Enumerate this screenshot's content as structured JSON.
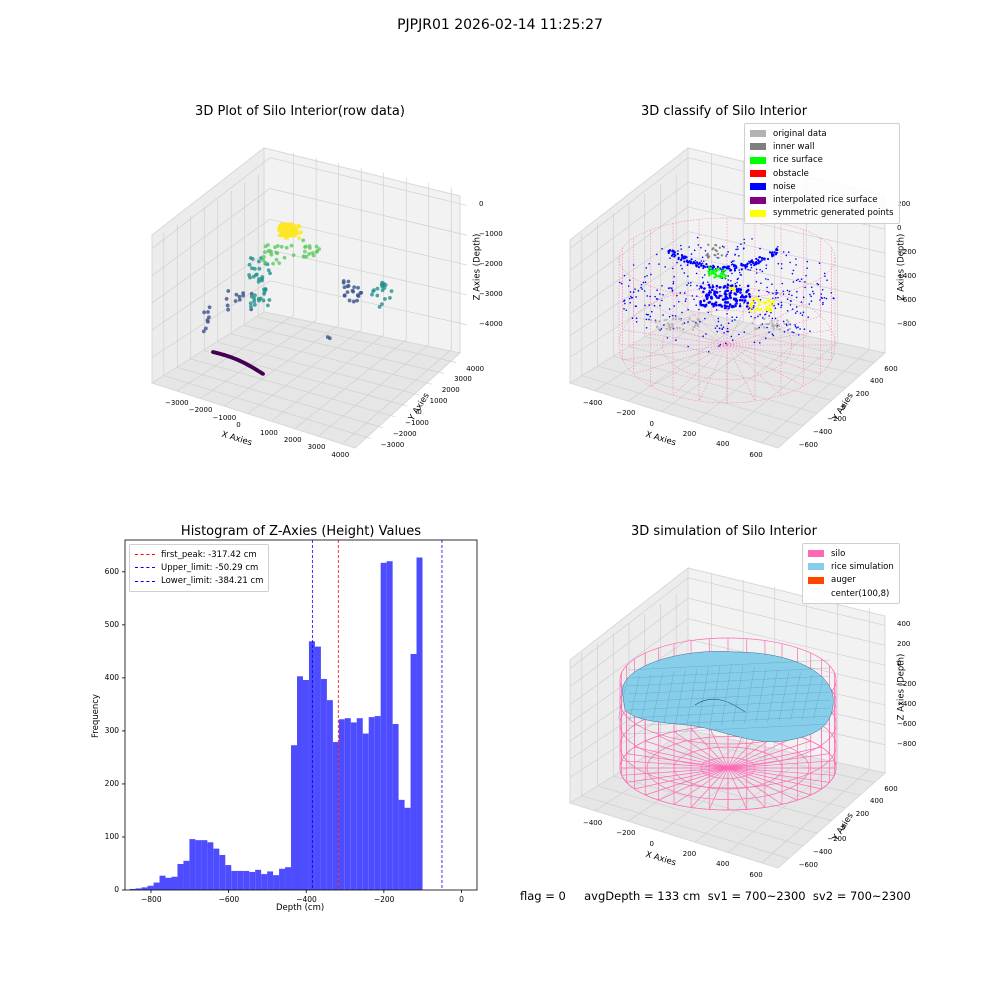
{
  "suptitle": "PJPJR01 2026-02-14 11:25:27",
  "status_text": "flag = 0     avgDepth = 133 cm  sv1 = 700~2300  sv2 = 700~2300",
  "chart_data": [
    {
      "type": "scatter",
      "title": "3D Plot of Silo Interior(row data)",
      "xlabel": "X Axies",
      "ylabel": "Y Axies",
      "zlabel": "Z Axies (Depth)",
      "x_ticks": [
        "−3000",
        "−2000",
        "−1000",
        "0",
        "1000",
        "2000",
        "3000",
        "4000"
      ],
      "y_ticks": [
        "−3000",
        "−2000",
        "−1000",
        "0",
        "1000",
        "2000",
        "3000",
        "4000"
      ],
      "z_ticks": [
        "0",
        "−1000",
        "−2000",
        "−3000",
        "−4000"
      ],
      "colormap": [
        "#440154",
        "#3b528b",
        "#21918c",
        "#5ec962",
        "#fde725"
      ],
      "grid": true
    },
    {
      "type": "scatter",
      "title": "3D classify of Silo Interior",
      "xlabel": "X Axies",
      "ylabel": "Y Axies",
      "zlabel": "Z Axies (Depth)",
      "x_ticks": [
        "−400",
        "−200",
        "0",
        "200",
        "400",
        "600"
      ],
      "y_ticks": [
        "−600",
        "−400",
        "−200",
        "0",
        "200",
        "400",
        "600"
      ],
      "z_ticks": [
        "200",
        "0",
        "−200",
        "−400",
        "−600",
        "−800"
      ],
      "legend_position": "top-right",
      "legend": [
        {
          "label": "original data",
          "color": "#b3b3b3"
        },
        {
          "label": "inner wall",
          "color": "#808080"
        },
        {
          "label": "rice surface",
          "color": "#00ff00"
        },
        {
          "label": "obstacle",
          "color": "#ff0000"
        },
        {
          "label": "noise",
          "color": "#0000ff"
        },
        {
          "label": "interpolated rice surface",
          "color": "#800080"
        },
        {
          "label": "symmetric generated points",
          "color": "#ffff00"
        }
      ],
      "grid": true
    },
    {
      "type": "bar",
      "title": "Histogram of Z-Axies (Height) Values",
      "xlabel": "Depth (cm)",
      "ylabel": "Frequency",
      "xlim": [
        -867,
        40
      ],
      "ylim": [
        0,
        660
      ],
      "x_ticks": [
        -800,
        -600,
        -400,
        -200,
        0
      ],
      "x_tick_labels": [
        "−800",
        "−600",
        "−400",
        "−200",
        "0"
      ],
      "y_ticks": [
        0,
        100,
        200,
        300,
        400,
        500,
        600
      ],
      "bin_start": -855,
      "bin_width": 15.4,
      "values": [
        2,
        3,
        5,
        8,
        14,
        27,
        23,
        25,
        49,
        55,
        96,
        94,
        94,
        90,
        78,
        66,
        47,
        36,
        36,
        36,
        34,
        38,
        30,
        35,
        28,
        40,
        43,
        273,
        403,
        396,
        469,
        459,
        398,
        358,
        279,
        322,
        324,
        316,
        324,
        295,
        326,
        328,
        617,
        620,
        313,
        170,
        155,
        445,
        627
      ],
      "bar_color": "#4d4dff",
      "reference_lines": [
        {
          "label": "first_peak: -317.42 cm",
          "value": -317.42,
          "color": "#ff0000"
        },
        {
          "label": "Upper_limit: -50.29 cm",
          "value": -50.29,
          "color": "#0000ff"
        },
        {
          "label": "Lower_limit: -384.21 cm",
          "value": -384.21,
          "color": "#0000ff"
        }
      ],
      "legend_position": "top-left"
    },
    {
      "type": "area",
      "title": "3D simulation of Silo Interior",
      "xlabel": "X Axies",
      "ylabel": "Y Axies",
      "zlabel": "Z Axies (Depth)",
      "x_ticks": [
        "−400",
        "−200",
        "0",
        "200",
        "400",
        "600"
      ],
      "y_ticks": [
        "−600",
        "−400",
        "−200",
        "0",
        "200",
        "400",
        "600"
      ],
      "z_ticks": [
        "400",
        "200",
        "0",
        "−200",
        "−400",
        "−600",
        "−800"
      ],
      "legend_position": "top-right",
      "legend": [
        {
          "label": "silo",
          "color": "#ff69b4"
        },
        {
          "label": "rice simulation",
          "color": "#87ceeb"
        },
        {
          "label": "auger",
          "color": "#ff4500"
        },
        {
          "label": "center(100,8)",
          "color": ""
        }
      ],
      "grid": true
    }
  ]
}
